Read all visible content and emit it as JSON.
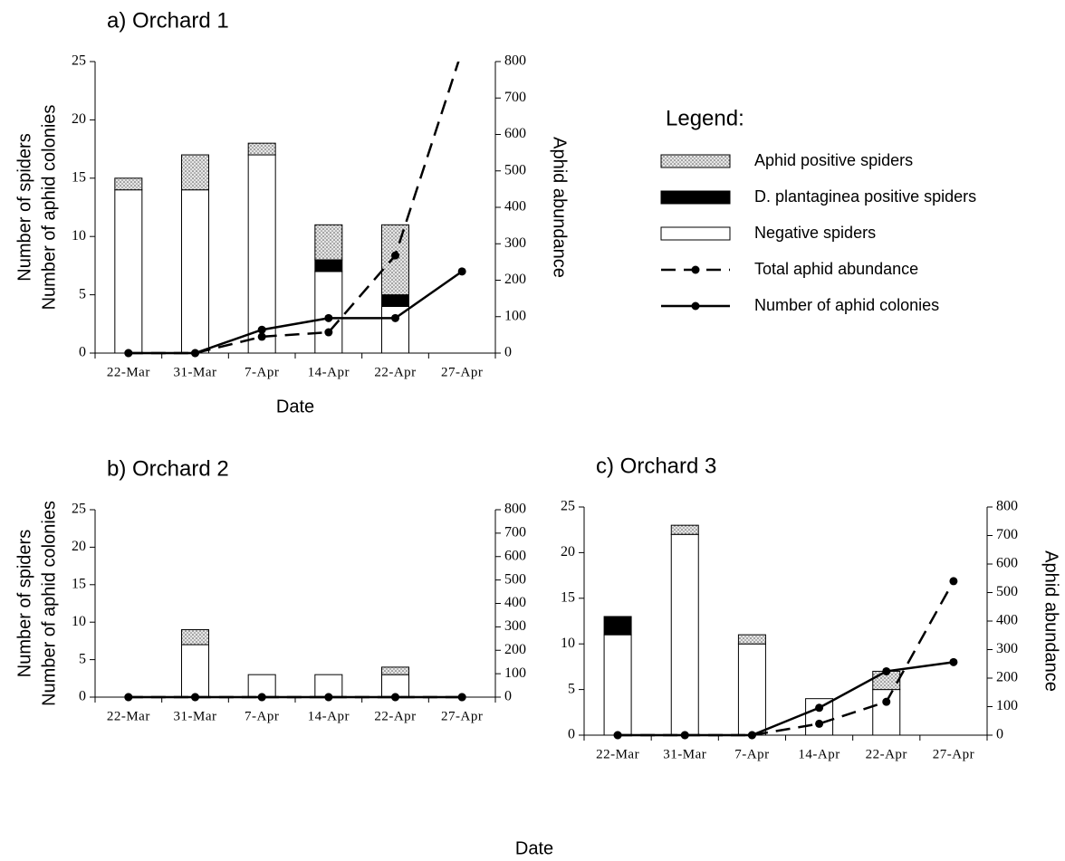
{
  "legend": {
    "title": "Legend:"
  },
  "chart_data": [
    {
      "type": "bar",
      "title": "a) Orchard 1",
      "categories": [
        "22-Mar",
        "31-Mar",
        "7-Apr",
        "14-Apr",
        "22-Apr",
        "27-Apr"
      ],
      "xlabel": "Date",
      "ylabel": [
        "Number of spiders",
        "Number of aphid colonies"
      ],
      "y2label": "Aphid abundance",
      "ylim": [
        0,
        25
      ],
      "yticks": [
        0,
        5,
        10,
        15,
        20,
        25
      ],
      "y2lim": [
        0,
        800
      ],
      "y2ticks": [
        0,
        100,
        200,
        300,
        400,
        500,
        600,
        700,
        800
      ],
      "series": [
        {
          "name": "Aphid positive spiders",
          "type": "bar",
          "color": "pattern",
          "values": [
            1,
            3,
            1,
            3,
            6,
            null
          ]
        },
        {
          "name": "D. plantaginea positive spiders",
          "type": "bar",
          "color": "#000000",
          "values": [
            0,
            0,
            0,
            1,
            1,
            null
          ]
        },
        {
          "name": "Negative spiders",
          "type": "bar",
          "color": "#ffffff",
          "values": [
            14,
            14,
            17,
            7,
            4,
            null
          ]
        },
        {
          "name": "Total aphid abundance",
          "type": "line",
          "dashed": true,
          "axis": "y2",
          "color": "#000000",
          "values": [
            0,
            0,
            45,
            57,
            268,
            830
          ]
        },
        {
          "name": "Number of aphid colonies",
          "type": "line",
          "dashed": false,
          "color": "#000000",
          "values": [
            0,
            0,
            2,
            3,
            3,
            7
          ]
        }
      ]
    },
    {
      "type": "bar",
      "title": "b) Orchard 2",
      "categories": [
        "22-Mar",
        "31-Mar",
        "7-Apr",
        "14-Apr",
        "22-Apr",
        "27-Apr"
      ],
      "ylabel": [
        "Number of spiders",
        "Number of aphid colonies"
      ],
      "ylim": [
        0,
        25
      ],
      "yticks": [
        0,
        5,
        10,
        15,
        20,
        25
      ],
      "y2lim": [
        0,
        800
      ],
      "y2ticks": [
        0,
        100,
        200,
        300,
        400,
        500,
        600,
        700,
        800
      ],
      "series": [
        {
          "type": "bar",
          "color": "pattern",
          "values": [
            0,
            2,
            0,
            0,
            1,
            0
          ]
        },
        {
          "type": "bar",
          "color": "#000000",
          "values": [
            0,
            0,
            0,
            0,
            0,
            0
          ]
        },
        {
          "type": "bar",
          "color": "#ffffff",
          "values": [
            0,
            7,
            3,
            3,
            3,
            0
          ]
        },
        {
          "type": "line",
          "dashed": true,
          "axis": "y2",
          "color": "#000000",
          "values": [
            0,
            0,
            0,
            0,
            0,
            0
          ]
        },
        {
          "type": "line",
          "dashed": false,
          "color": "#000000",
          "values": [
            0,
            0,
            0,
            0,
            0,
            0
          ]
        }
      ]
    },
    {
      "type": "bar",
      "title": "c) Orchard 3",
      "categories": [
        "22-Mar",
        "31-Mar",
        "7-Apr",
        "14-Apr",
        "22-Apr",
        "27-Apr"
      ],
      "xlabel": "Date",
      "y2label": "Aphid abundance",
      "ylim": [
        0,
        25
      ],
      "yticks": [
        0,
        5,
        10,
        15,
        20,
        25
      ],
      "y2lim": [
        0,
        800
      ],
      "y2ticks": [
        0,
        100,
        200,
        300,
        400,
        500,
        600,
        700,
        800
      ],
      "series": [
        {
          "type": "bar",
          "color": "pattern",
          "values": [
            0,
            1,
            1,
            0,
            2,
            null
          ]
        },
        {
          "type": "bar",
          "color": "#000000",
          "values": [
            2,
            0,
            0,
            0,
            0,
            null
          ]
        },
        {
          "type": "bar",
          "color": "#ffffff",
          "values": [
            11,
            22,
            10,
            4,
            5,
            null
          ]
        },
        {
          "type": "line",
          "dashed": true,
          "axis": "y2",
          "color": "#000000",
          "values": [
            0,
            0,
            0,
            40,
            117,
            540
          ]
        },
        {
          "type": "line",
          "dashed": false,
          "color": "#000000",
          "values": [
            0,
            0,
            0,
            3,
            7,
            8
          ]
        }
      ]
    }
  ]
}
